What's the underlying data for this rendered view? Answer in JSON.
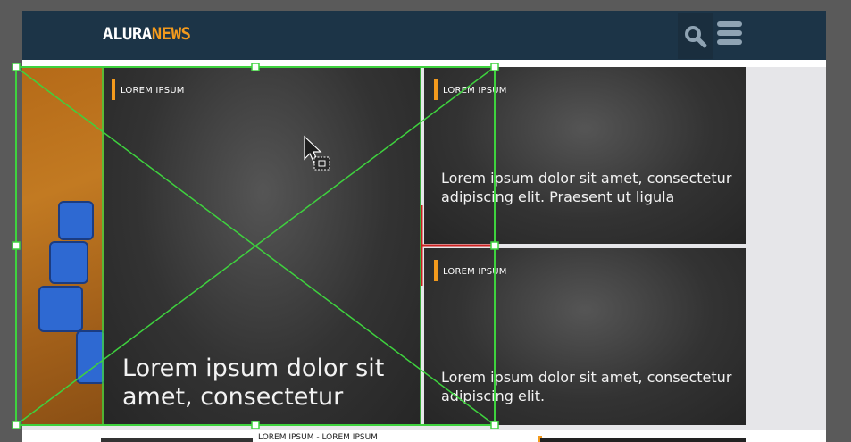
{
  "navbar": {
    "logo_part1": "ALURA",
    "logo_part2": "NEWS",
    "search_icon": "search-icon",
    "menu_icon": "hamburger-menu-icon",
    "background": "#1c3447",
    "accent": "#f39a1d"
  },
  "main_card": {
    "tag": "LOREM IPSUM",
    "headline": "Lorem ipsum dolor sit amet, consectetur"
  },
  "side_cards": [
    {
      "tag": "LOREM IPSUM",
      "headline": "Lorem ipsum dolor sit amet, consectetur adipiscing elit. Praesent ut ligula"
    },
    {
      "tag": "LOREM IPSUM",
      "headline": "Lorem ipsum dolor sit amet, consectetur adipiscing elit."
    }
  ],
  "bottom_row": {
    "tag": "LOREM IPSUM - LOREM IPSUM"
  }
}
